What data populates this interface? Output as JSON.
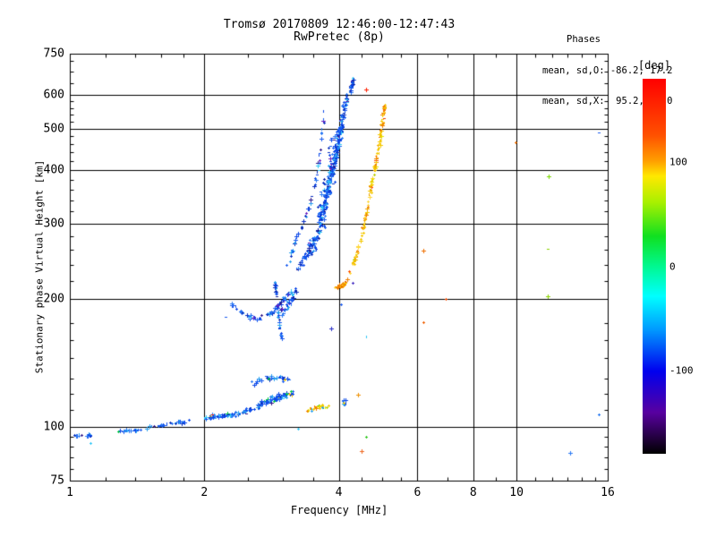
{
  "header": {
    "title_line1": "Tromsø 20170809 12:46:00-12:47:43",
    "title_line2": "RwPretec (8p)",
    "stats": {
      "title": "Phases",
      "line_o": "mean, sd,O: -86.2, 17.2",
      "line_x": "mean, sd,X:  95.2, 20.0"
    }
  },
  "chart_data": {
    "type": "scatter",
    "title": "Tromsø 20170809 12:46:00-12:47:43 / RwPretec (8p)",
    "xlabel": "Frequency [MHz]",
    "ylabel": "Stationary phase Virtual Height [km]",
    "x_scale": "log",
    "y_scale": "log",
    "xlim": [
      1,
      16
    ],
    "ylim": [
      75,
      750
    ],
    "x_major_ticks": [
      1,
      2,
      4,
      6,
      8,
      10,
      16
    ],
    "x_minor_ticks": [
      1.2,
      1.4,
      1.6,
      1.8,
      2.5,
      3,
      3.5,
      4.5,
      5,
      5.5,
      7,
      9,
      11,
      12,
      13,
      14,
      15
    ],
    "y_major_ticks": [
      75,
      100,
      200,
      300,
      400,
      500,
      600,
      750
    ],
    "y_minor_ticks": [
      80,
      85,
      90,
      95,
      110,
      120,
      130,
      145,
      160,
      175,
      220,
      240,
      260,
      280,
      320,
      340,
      360,
      380,
      420,
      440,
      460,
      480,
      520,
      540,
      560,
      580,
      640,
      680,
      720
    ],
    "grid_x": [
      2,
      4,
      6,
      8,
      10
    ],
    "grid_y": [
      100,
      200,
      300,
      400,
      500,
      600
    ],
    "grid": true,
    "legend_position": "none",
    "phase_stats": {
      "o_mean": -86.2,
      "o_sd": 17.2,
      "x_mean": 95.2,
      "x_sd": 20.0
    },
    "colorbar": {
      "label": "[deg]",
      "min": -180,
      "max": 180,
      "ticks": [
        100,
        0,
        -100
      ],
      "gradient_top_to_bottom": [
        [
          "#ff0000",
          0
        ],
        [
          "#ff5000",
          15
        ],
        [
          "#ffa000",
          22
        ],
        [
          "#ffe800",
          26
        ],
        [
          "#a8f000",
          33
        ],
        [
          "#10e020",
          42
        ],
        [
          "#00f890",
          50
        ],
        [
          "#00ffff",
          58
        ],
        [
          "#0098ff",
          67
        ],
        [
          "#0000ee",
          78
        ],
        [
          "#5800a0",
          89
        ],
        [
          "#000000",
          100
        ]
      ]
    },
    "seed": 7,
    "palettes": {
      "O": [
        [
          "#0a46e8",
          8
        ],
        [
          "#1a5cf0",
          7
        ],
        [
          "#0a30c0",
          5
        ],
        [
          "#2a7af5",
          4
        ],
        [
          "#28a0f0",
          3
        ],
        [
          "#30c8f8",
          2
        ],
        [
          "#1020a0",
          2
        ],
        [
          "#6a20c0",
          1
        ],
        [
          "#30188a",
          1
        ]
      ],
      "E": [
        [
          "#0a46e8",
          8
        ],
        [
          "#1a5cf0",
          6
        ],
        [
          "#2a7af5",
          4
        ],
        [
          "#28a0f0",
          3
        ],
        [
          "#30c8f8",
          2
        ],
        [
          "#0a30c0",
          3
        ],
        [
          "#30188a",
          1
        ],
        [
          "#00c840",
          0.6
        ],
        [
          "#f5c800",
          0.6
        ]
      ],
      "X": [
        [
          "#f5c800",
          6
        ],
        [
          "#ffd83a",
          5
        ],
        [
          "#f0a800",
          4
        ],
        [
          "#f08000",
          3
        ],
        [
          "#e8e000",
          2
        ],
        [
          "#ff5000",
          1
        ],
        [
          "#b8cc00",
          1
        ]
      ],
      "XO": [
        [
          "#f08000",
          5
        ],
        [
          "#f5a000",
          4
        ],
        [
          "#f5c800",
          3
        ],
        [
          "#ffd83a",
          2
        ],
        [
          "#e85000",
          1
        ]
      ],
      "EY": [
        [
          "#f5c800",
          5
        ],
        [
          "#e8e000",
          3
        ],
        [
          "#b8d400",
          2
        ],
        [
          "#f08000",
          2
        ],
        [
          "#40c820",
          1
        ],
        [
          "#28a0f0",
          1
        ]
      ]
    },
    "series": [
      {
        "name": "o-mode-hook",
        "palette": "O",
        "n": 65,
        "spread": [
          2,
          2.5
        ],
        "path": [
          [
            2.3,
            194
          ],
          [
            2.45,
            184
          ],
          [
            2.62,
            179
          ],
          [
            2.85,
            187
          ],
          [
            3.0,
            199
          ],
          [
            3.15,
            210
          ]
        ]
      },
      {
        "name": "o-mode-mid-scatter",
        "palette": "O",
        "n": 30,
        "spread": [
          3,
          7
        ],
        "path": [
          [
            2.98,
            185
          ],
          [
            3.1,
            195
          ],
          [
            3.2,
            210
          ]
        ]
      },
      {
        "name": "o-mode-descending-strand",
        "palette": "O",
        "n": 35,
        "spread": [
          2,
          3
        ],
        "path": [
          [
            2.87,
            222
          ],
          [
            2.9,
            200
          ],
          [
            2.94,
            178
          ],
          [
            2.97,
            160
          ]
        ]
      },
      {
        "name": "o-mode-main",
        "palette": "O",
        "n": 220,
        "spread": [
          3.5,
          4
        ],
        "path": [
          [
            3.22,
            232
          ],
          [
            3.42,
            258
          ],
          [
            3.58,
            283
          ],
          [
            3.7,
            325
          ],
          [
            3.8,
            365
          ],
          [
            3.9,
            410
          ],
          [
            3.98,
            455
          ],
          [
            4.05,
            510
          ],
          [
            4.12,
            565
          ],
          [
            4.18,
            600
          ]
        ]
      },
      {
        "name": "o-mode-top",
        "palette": "O",
        "n": 30,
        "spread": [
          2,
          4
        ],
        "path": [
          [
            4.24,
            605
          ],
          [
            4.29,
            640
          ],
          [
            4.32,
            662
          ]
        ]
      },
      {
        "name": "o-mode-cloud",
        "palette": "O",
        "n": 150,
        "spread": [
          9,
          6
        ],
        "path": [
          [
            3.45,
            255
          ],
          [
            3.6,
            290
          ],
          [
            3.7,
            330
          ],
          [
            3.78,
            370
          ],
          [
            3.87,
            420
          ],
          [
            3.95,
            470
          ],
          [
            4.03,
            510
          ]
        ]
      },
      {
        "name": "o-mode-left-branch",
        "palette": "O",
        "n": 48,
        "spread": [
          1.8,
          3
        ],
        "path": [
          [
            3.05,
            237
          ],
          [
            3.2,
            272
          ],
          [
            3.32,
            302
          ],
          [
            3.43,
            325
          ],
          [
            3.53,
            370
          ],
          [
            3.62,
            425
          ],
          [
            3.67,
            500
          ],
          [
            3.71,
            565
          ]
        ]
      },
      {
        "name": "x-mode-cusp",
        "palette": "XO",
        "n": 42,
        "spread": [
          3,
          3
        ],
        "path": [
          [
            3.93,
            213
          ],
          [
            4.05,
            214
          ],
          [
            4.18,
            222
          ]
        ]
      },
      {
        "name": "x-mode-main",
        "palette": "X",
        "n": 135,
        "spread": [
          2.2,
          3
        ],
        "path": [
          [
            4.22,
            230
          ],
          [
            4.34,
            247
          ],
          [
            4.45,
            270
          ],
          [
            4.55,
            300
          ],
          [
            4.65,
            336
          ],
          [
            4.75,
            377
          ],
          [
            4.85,
            422
          ],
          [
            4.92,
            465
          ],
          [
            4.98,
            506
          ],
          [
            5.03,
            540
          ],
          [
            5.06,
            568
          ]
        ]
      },
      {
        "name": "e-region-left",
        "palette": "E",
        "n": 13,
        "spread": [
          3,
          2.5
        ],
        "path": [
          [
            1.03,
            96
          ],
          [
            1.12,
            96
          ]
        ]
      },
      {
        "name": "e-region-band-1",
        "palette": "E",
        "n": 42,
        "spread": [
          4,
          2
        ],
        "path": [
          [
            1.27,
            98
          ],
          [
            1.45,
            99
          ],
          [
            1.65,
            102
          ],
          [
            1.9,
            104
          ]
        ]
      },
      {
        "name": "e-region-band-2",
        "palette": "E",
        "n": 70,
        "spread": [
          6,
          3.5
        ],
        "path": [
          [
            2.0,
            105
          ],
          [
            2.3,
            107
          ],
          [
            2.55,
            110
          ]
        ]
      },
      {
        "name": "e-region-band-3",
        "palette": "E",
        "n": 80,
        "spread": [
          7,
          5
        ],
        "path": [
          [
            2.62,
            113
          ],
          [
            2.9,
            117
          ],
          [
            3.18,
            121
          ]
        ]
      },
      {
        "name": "e-region-upper-scatter",
        "palette": "E",
        "n": 28,
        "spread": [
          9,
          5
        ],
        "path": [
          [
            2.58,
            126
          ],
          [
            2.8,
            132
          ],
          [
            3.05,
            129
          ]
        ]
      },
      {
        "name": "e-region-yellow-patch",
        "palette": "EY",
        "n": 30,
        "spread": [
          6,
          3
        ],
        "path": [
          [
            3.42,
            110
          ],
          [
            3.6,
            112
          ],
          [
            3.78,
            112
          ]
        ]
      },
      {
        "name": "e-region-right-blue",
        "palette": "E",
        "n": 9,
        "spread": [
          3,
          3
        ],
        "path": [
          [
            4.07,
            113
          ],
          [
            4.15,
            116
          ]
        ]
      }
    ],
    "outliers": [
      [
        4.61,
        618,
        "#ff2000"
      ],
      [
        5.06,
        531,
        "#f04000"
      ],
      [
        6.2,
        259,
        "#f07000"
      ],
      [
        6.2,
        176,
        "#f06000"
      ],
      [
        6.95,
        200,
        "#f04800"
      ],
      [
        9.95,
        465,
        "#f07000"
      ],
      [
        11.8,
        388,
        "#7ad800"
      ],
      [
        11.75,
        262,
        "#8ad400"
      ],
      [
        11.75,
        203,
        "#8ad400"
      ],
      [
        15.3,
        490,
        "#1a5cf0"
      ],
      [
        15.3,
        107,
        "#1a70f0"
      ],
      [
        13.2,
        87,
        "#2a7af5"
      ],
      [
        4.6,
        95,
        "#30c820"
      ],
      [
        4.5,
        88,
        "#f06820"
      ],
      [
        4.6,
        163,
        "#30c8f8"
      ],
      [
        3.84,
        170,
        "#2a30c8"
      ],
      [
        4.41,
        119,
        "#f09000"
      ],
      [
        4.3,
        218,
        "#4028c0"
      ],
      [
        4.05,
        194,
        "#1a5cf0"
      ],
      [
        3.24,
        99,
        "#30c8f8"
      ],
      [
        2.08,
        107,
        "#ff2000"
      ],
      [
        1.28,
        98,
        "#00c840"
      ],
      [
        1.11,
        92,
        "#30c8f8"
      ],
      [
        2.23,
        181,
        "#1a5cf0"
      ]
    ]
  }
}
